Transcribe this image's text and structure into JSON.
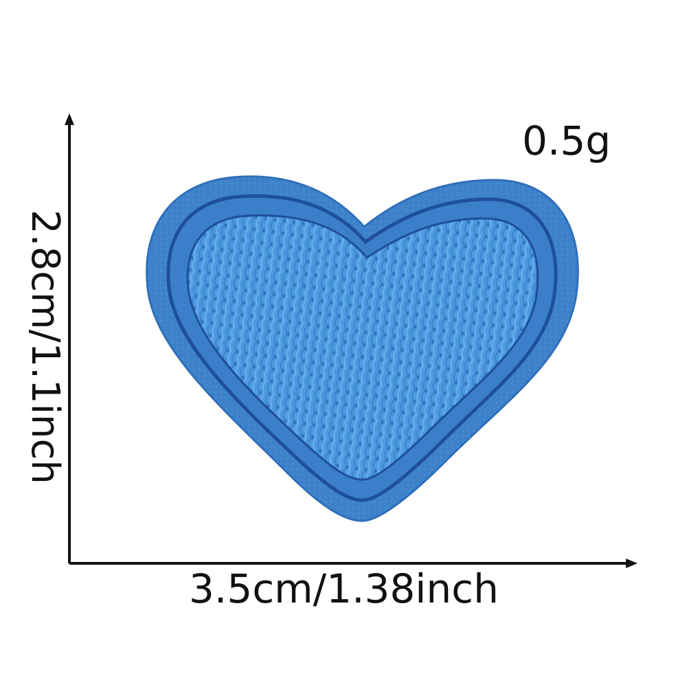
{
  "product": {
    "weight_label": "0.5g",
    "width_label": "3.5cm/1.38inch",
    "height_label": "2.8cm/1.1inch",
    "colors": {
      "felt_border": "#3f82cc",
      "felt_dark": "#2f6fb8",
      "stitch_outline": "#1f4f9a",
      "fill_light": "#5aa6e6",
      "fill_mid": "#4a93d8",
      "axis": "#111111",
      "background": "#ffffff"
    },
    "icon": "heart-patch-icon"
  }
}
